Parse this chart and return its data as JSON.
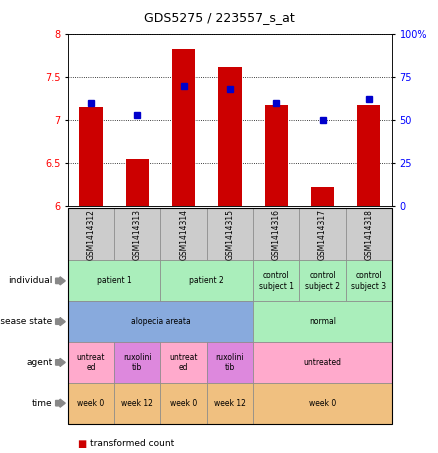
{
  "title": "GDS5275 / 223557_s_at",
  "samples": [
    "GSM1414312",
    "GSM1414313",
    "GSM1414314",
    "GSM1414315",
    "GSM1414316",
    "GSM1414317",
    "GSM1414318"
  ],
  "red_values": [
    7.15,
    6.55,
    7.82,
    7.62,
    7.18,
    6.22,
    7.18
  ],
  "blue_values": [
    60,
    53,
    70,
    68,
    60,
    50,
    62
  ],
  "ylim": [
    6,
    8
  ],
  "y2lim": [
    0,
    100
  ],
  "yticks": [
    6,
    6.5,
    7,
    7.5,
    8
  ],
  "y2ticks": [
    0,
    25,
    50,
    75,
    100
  ],
  "ytick_labels": [
    "6",
    "6.5",
    "7",
    "7.5",
    "8"
  ],
  "y2tick_labels": [
    "0",
    "25",
    "50",
    "75",
    "100%"
  ],
  "row_labels": [
    "individual",
    "disease state",
    "agent",
    "time"
  ],
  "individual_spans": [
    [
      0,
      2,
      "patient 1"
    ],
    [
      2,
      4,
      "patient 2"
    ],
    [
      4,
      5,
      "control\nsubject 1"
    ],
    [
      5,
      6,
      "control\nsubject 2"
    ],
    [
      6,
      7,
      "control\nsubject 3"
    ]
  ],
  "individual_color": "#aaeebb",
  "disease_spans": [
    [
      0,
      4,
      "alopecia areata"
    ],
    [
      4,
      7,
      "normal"
    ]
  ],
  "disease_colors": [
    "#88aadd",
    "#aaeebb"
  ],
  "agent_spans": [
    [
      0,
      1,
      "untreat\ned"
    ],
    [
      1,
      2,
      "ruxolini\ntib"
    ],
    [
      2,
      3,
      "untreat\ned"
    ],
    [
      3,
      4,
      "ruxolini\ntib"
    ],
    [
      4,
      7,
      "untreated"
    ]
  ],
  "agent_colors": [
    "#ffaacc",
    "#dd88dd",
    "#ffaacc",
    "#dd88dd",
    "#ffaacc"
  ],
  "time_spans": [
    [
      0,
      1,
      "week 0"
    ],
    [
      1,
      2,
      "week 12"
    ],
    [
      2,
      3,
      "week 0"
    ],
    [
      3,
      4,
      "week 12"
    ],
    [
      4,
      7,
      "week 0"
    ]
  ],
  "time_color": "#f0c080",
  "bar_color": "#cc0000",
  "dot_color": "#0000cc",
  "sample_box_color": "#cccccc"
}
